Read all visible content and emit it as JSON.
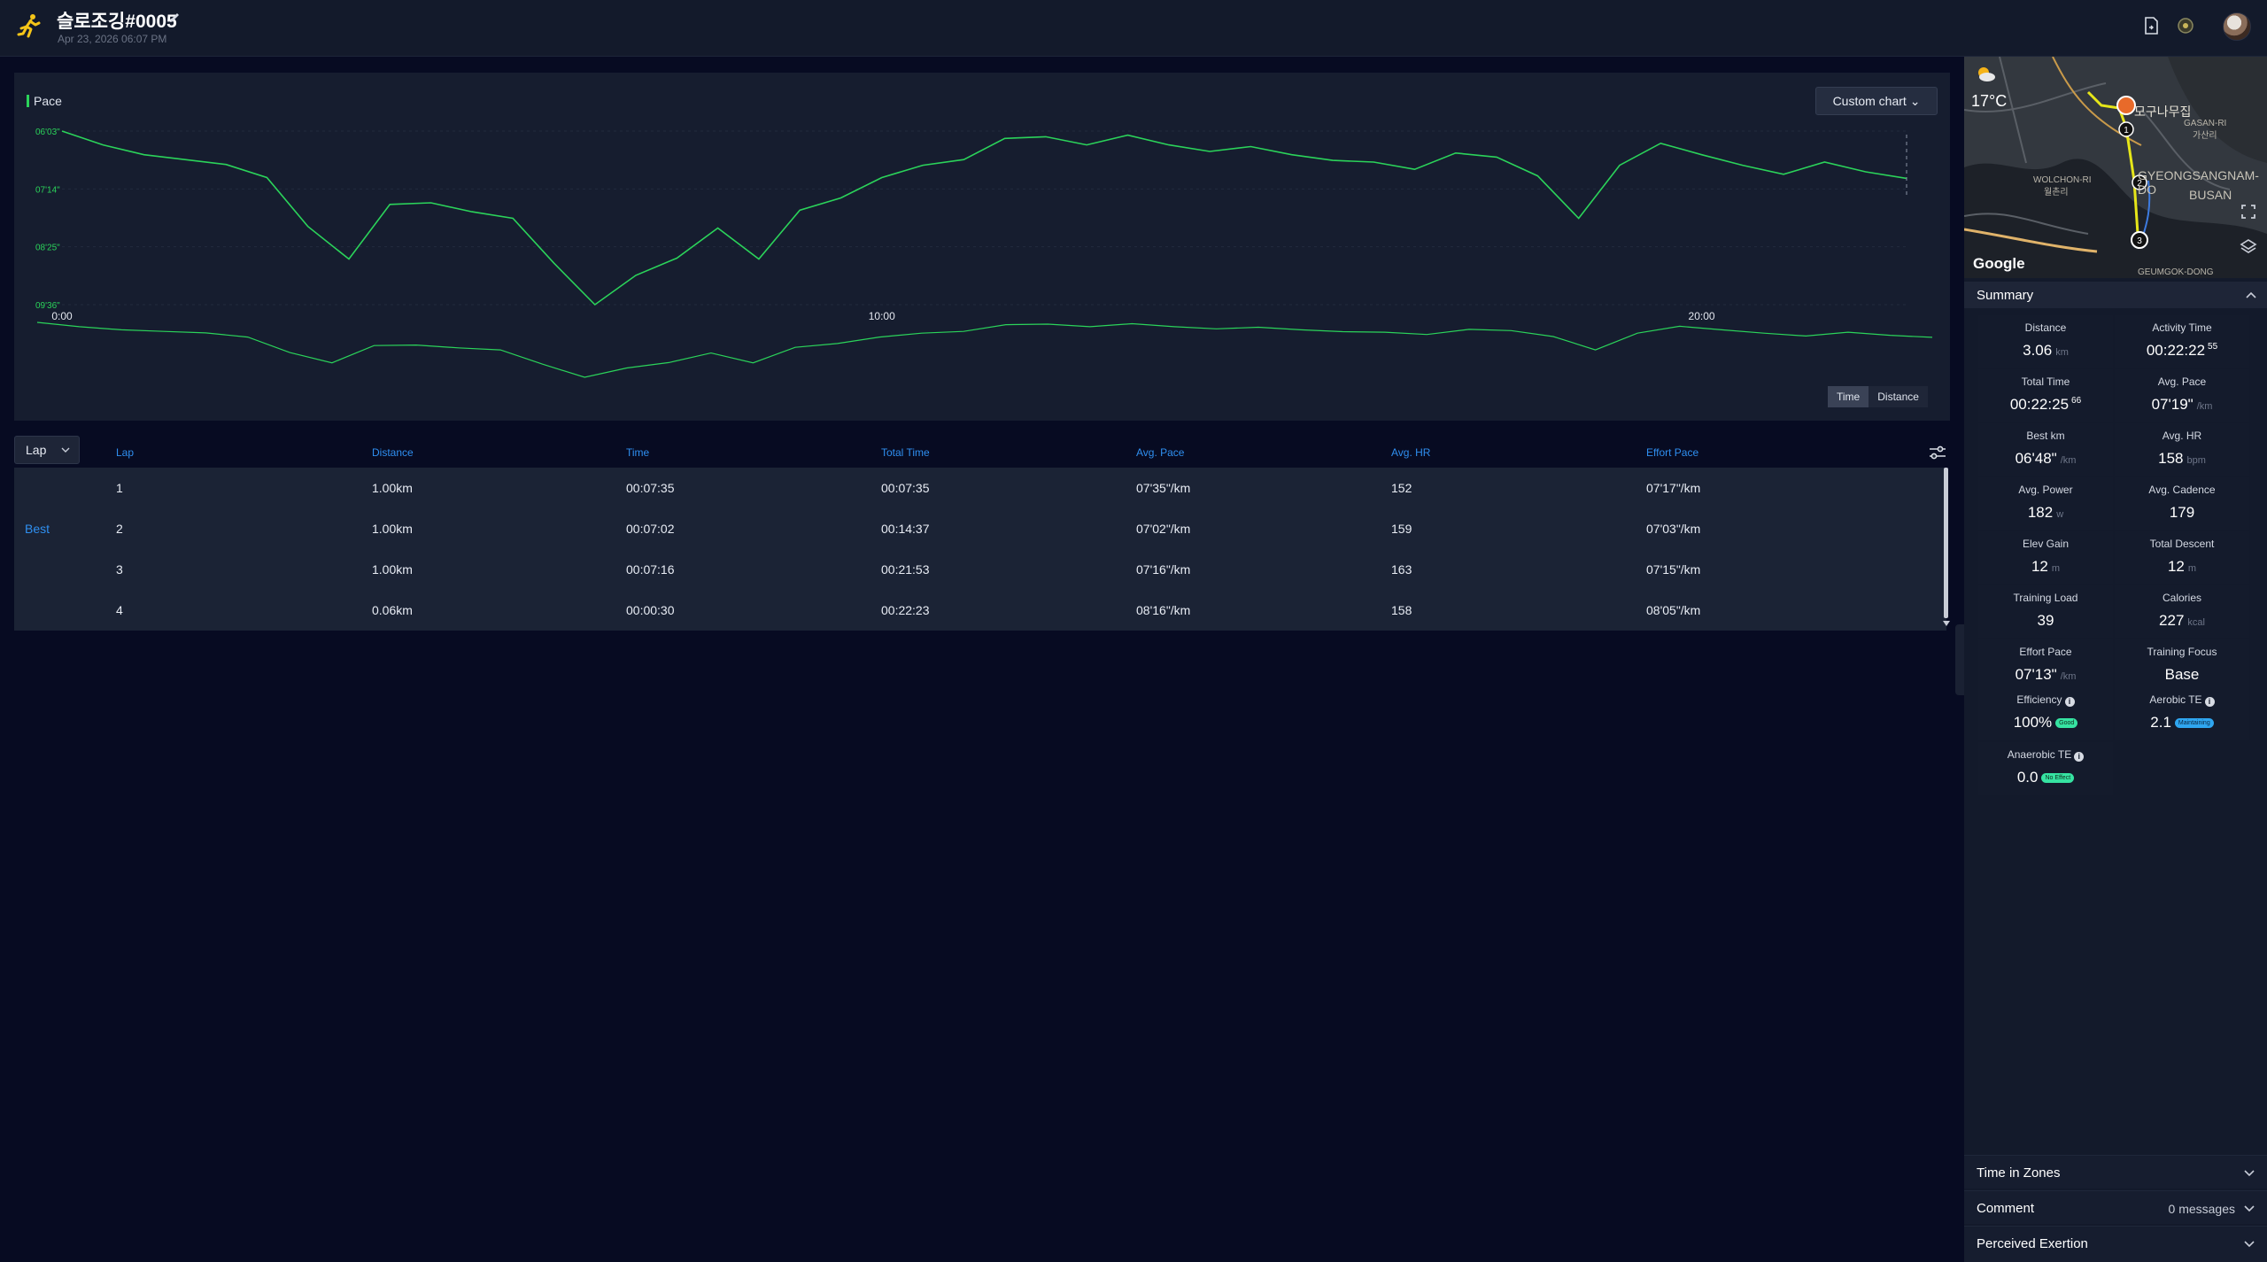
{
  "header": {
    "title": "슬로조깅#0005",
    "date": "Apr 23, 2026 06:07 PM"
  },
  "chart": {
    "legend": "Pace",
    "custom_chart_label": "Custom chart",
    "toggle_time": "Time",
    "toggle_distance": "Distance",
    "colors": {
      "line": "#2bd35a",
      "background": "#161d2f"
    }
  },
  "chart_data": {
    "type": "line",
    "title": "",
    "series": [
      {
        "name": "Pace"
      }
    ],
    "yticks": [
      "06'03\"",
      "07'14\"",
      "08'25\"",
      "09'36\""
    ],
    "ylim": [
      "06'03\"",
      "09'36\""
    ],
    "y_inverted": true,
    "xticks": [
      "0:00",
      "10:00",
      "20:00"
    ],
    "x_unit": "minutes",
    "x": [
      0,
      0.5,
      1,
      1.5,
      2,
      2.5,
      3,
      3.5,
      4,
      4.5,
      5,
      5.5,
      6,
      6.5,
      7,
      7.5,
      8,
      8.5,
      9,
      9.5,
      10,
      10.5,
      11,
      11.5,
      12,
      12.5,
      13,
      13.5,
      14,
      14.5,
      15,
      15.5,
      16,
      16.5,
      17,
      17.5,
      18,
      18.5,
      19,
      19.5,
      20,
      20.5,
      21,
      21.5,
      22,
      22.5
    ],
    "pace_seconds": [
      363,
      380,
      392,
      398,
      404,
      420,
      480,
      520,
      453,
      451,
      462,
      470,
      525,
      576,
      540,
      519,
      482,
      520,
      460,
      445,
      420,
      405,
      398,
      372,
      370,
      380,
      368,
      380,
      388,
      382,
      392,
      399,
      401,
      410,
      390,
      395,
      418,
      470,
      405,
      378,
      392,
      405,
      416,
      401,
      413,
      421
    ],
    "grid": true
  },
  "laps": {
    "select_label": "Lap",
    "columns": [
      "Lap",
      "Distance",
      "Time",
      "Total Time",
      "Avg. Pace",
      "Avg. HR",
      "Effort Pace"
    ],
    "best_label": "Best",
    "rows": [
      {
        "lap": "1",
        "best": "",
        "distance": "1.00km",
        "time": "00:07:35",
        "total_time": "00:07:35",
        "avg_pace": "07'35\"/km",
        "avg_hr": "152",
        "effort_pace": "07'17\"/km"
      },
      {
        "lap": "2",
        "best": "Best",
        "distance": "1.00km",
        "time": "00:07:02",
        "total_time": "00:14:37",
        "avg_pace": "07'02\"/km",
        "avg_hr": "159",
        "effort_pace": "07'03\"/km"
      },
      {
        "lap": "3",
        "best": "",
        "distance": "1.00km",
        "time": "00:07:16",
        "total_time": "00:21:53",
        "avg_pace": "07'16\"/km",
        "avg_hr": "163",
        "effort_pace": "07'15\"/km"
      },
      {
        "lap": "4",
        "best": "",
        "distance": "0.06km",
        "time": "00:00:30",
        "total_time": "00:22:23",
        "avg_pace": "08'16\"/km",
        "avg_hr": "158",
        "effort_pace": "08'05\"/km"
      }
    ]
  },
  "map": {
    "temperature": "17°C",
    "google": "Google",
    "labels": [
      "모구나무집",
      "GASAN-RI",
      "가산리",
      "WOLCHON-RI",
      "월촌리",
      "GYEONGSANGNAM-DO",
      "BUSAN",
      "GEUMGOK-DONG"
    ],
    "markers": [
      "1",
      "2",
      "3"
    ],
    "route_color": "#e6e619"
  },
  "summary": {
    "title": "Summary",
    "stats": [
      {
        "label": "Distance",
        "value": "3.06",
        "unit": "km",
        "sup": ""
      },
      {
        "label": "Activity Time",
        "value": "00:22:22",
        "unit": "",
        "sup": "55"
      },
      {
        "label": "Total Time",
        "value": "00:22:25",
        "unit": "",
        "sup": "66"
      },
      {
        "label": "Avg. Pace",
        "value": "07'19\"",
        "unit": "/km",
        "sup": ""
      },
      {
        "label": "Best km",
        "value": "06'48\"",
        "unit": "/km",
        "sup": ""
      },
      {
        "label": "Avg. HR",
        "value": "158",
        "unit": "bpm",
        "sup": ""
      },
      {
        "label": "Avg. Power",
        "value": "182",
        "unit": "w",
        "sup": ""
      },
      {
        "label": "Avg. Cadence",
        "value": "179",
        "unit": "",
        "sup": ""
      },
      {
        "label": "Elev Gain",
        "value": "12",
        "unit": "m",
        "sup": ""
      },
      {
        "label": "Total Descent",
        "value": "12",
        "unit": "m",
        "sup": ""
      },
      {
        "label": "Training Load",
        "value": "39",
        "unit": "",
        "sup": ""
      },
      {
        "label": "Calories",
        "value": "227",
        "unit": "kcal",
        "sup": ""
      },
      {
        "label": "Effort Pace",
        "value": "07'13\"",
        "unit": "/km",
        "sup": ""
      },
      {
        "label": "Training Focus",
        "value": "Base",
        "unit": "",
        "sup": ""
      }
    ],
    "efficiency": {
      "label": "Efficiency",
      "value": "100%",
      "badge": "Good"
    },
    "aerobic_te": {
      "label": "Aerobic TE",
      "value": "2.1",
      "badge": "Maintaining"
    },
    "anaerobic_te": {
      "label": "Anaerobic TE",
      "value": "0.0",
      "badge": "No Effect"
    }
  },
  "sections": {
    "time_in_zones": "Time in Zones",
    "comment": "Comment",
    "comment_meta": "0 messages",
    "perceived_exertion": "Perceived Exertion"
  }
}
